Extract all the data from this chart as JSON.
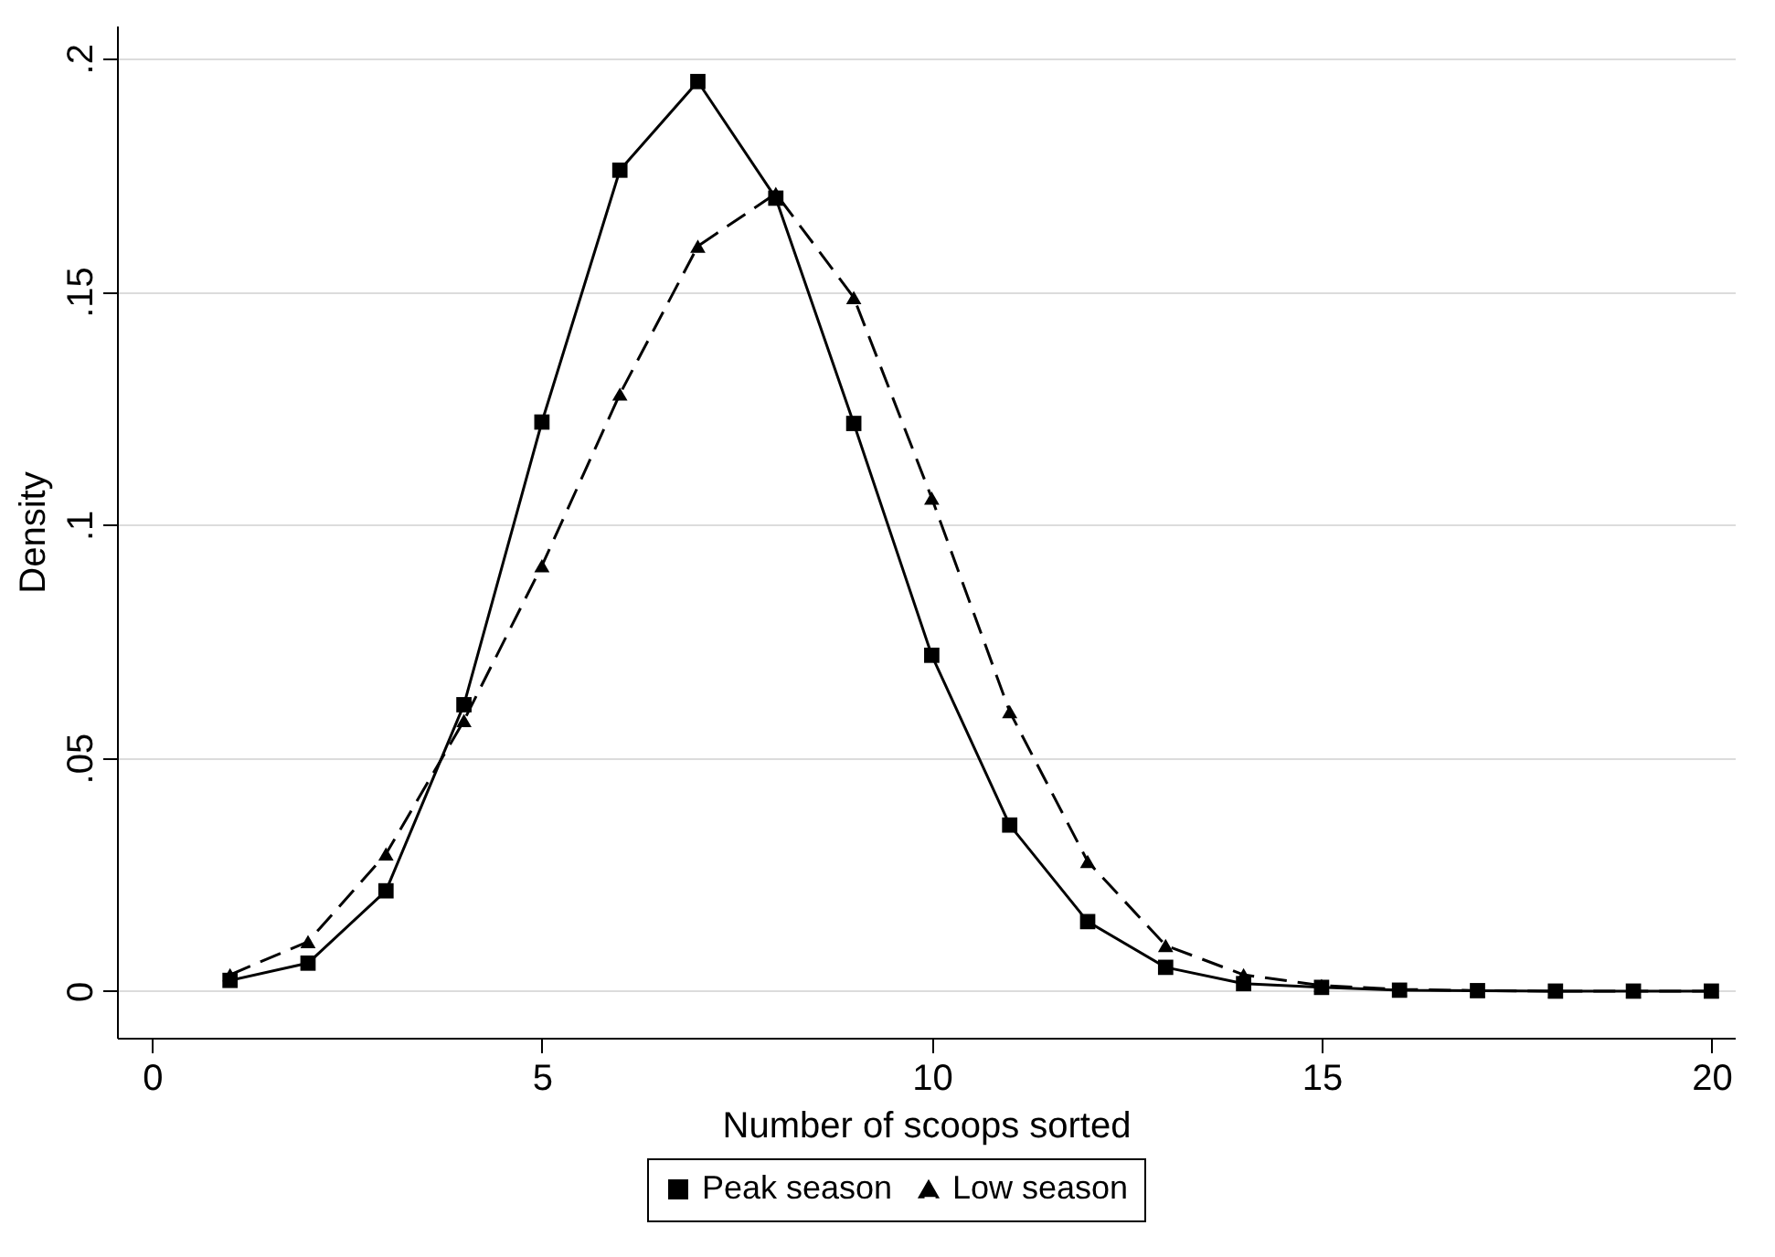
{
  "chart_data": {
    "type": "line",
    "xlabel": "Number of scoops sorted",
    "ylabel": "Density",
    "x": [
      1,
      2,
      3,
      4,
      5,
      6,
      7,
      8,
      9,
      10,
      11,
      12,
      13,
      14,
      15,
      16,
      17,
      18,
      19,
      20
    ],
    "series": [
      {
        "name": "Peak season",
        "color": "#000000",
        "marker": "square",
        "line_style": "solid",
        "values": [
          0.0023,
          0.006,
          0.0215,
          0.0614,
          0.122,
          0.176,
          0.195,
          0.17,
          0.1217,
          0.072,
          0.0356,
          0.0149,
          0.0051,
          0.0016,
          0.0008,
          0.0002,
          0.0001,
          0,
          0,
          0
        ]
      },
      {
        "name": "Low season",
        "color": "#000000",
        "marker": "triangle",
        "line_style": "dashed",
        "values": [
          0.0035,
          0.0106,
          0.0294,
          0.058,
          0.0912,
          0.128,
          0.1597,
          0.171,
          0.1487,
          0.1057,
          0.0599,
          0.0278,
          0.0098,
          0.0035,
          0.0012,
          0.0004,
          0.0001,
          0,
          0,
          0
        ]
      }
    ],
    "xlim": [
      -0.45,
      20.3
    ],
    "xticks": [
      0,
      5,
      10,
      15,
      20
    ],
    "ylim": [
      -0.01,
      0.207
    ],
    "yticks": [
      0,
      {
        "value": 0.05,
        "label": ".05"
      },
      {
        "value": 0.1,
        "label": ".1"
      },
      {
        "value": 0.15,
        "label": ".15"
      },
      {
        "value": 0.2,
        "label": ".2"
      }
    ],
    "grid": "y",
    "legend": "bottom"
  }
}
